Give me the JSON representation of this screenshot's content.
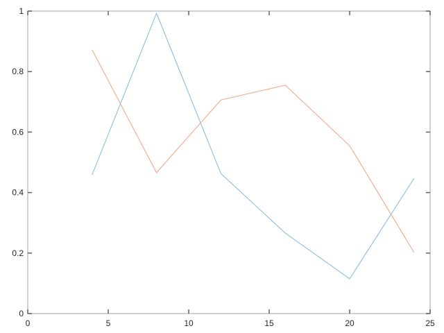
{
  "chart_data": {
    "type": "line",
    "title": "",
    "xlabel": "",
    "ylabel": "",
    "xlim": [
      0,
      25
    ],
    "ylim": [
      0,
      1
    ],
    "xticks": [
      0,
      5,
      10,
      15,
      20,
      25
    ],
    "yticks": [
      0,
      0.2,
      0.4,
      0.6,
      0.8,
      1
    ],
    "xtick_labels": [
      "0",
      "5",
      "10",
      "15",
      "20",
      "25"
    ],
    "ytick_labels": [
      "0",
      "0.2",
      "0.4",
      "0.6",
      "0.8",
      "1"
    ],
    "grid": false,
    "box": true,
    "x": [
      4,
      8,
      12,
      16,
      20,
      24
    ],
    "series": [
      {
        "color": "#7eb6e0",
        "values": [
          0.459,
          0.993,
          0.463,
          0.266,
          0.115,
          0.447
        ]
      },
      {
        "color": "#f0a080",
        "values": [
          0.872,
          0.466,
          0.706,
          0.755,
          0.555,
          0.202
        ]
      }
    ],
    "axis_color": "#c0c0c0",
    "tick_color": "#606060"
  }
}
